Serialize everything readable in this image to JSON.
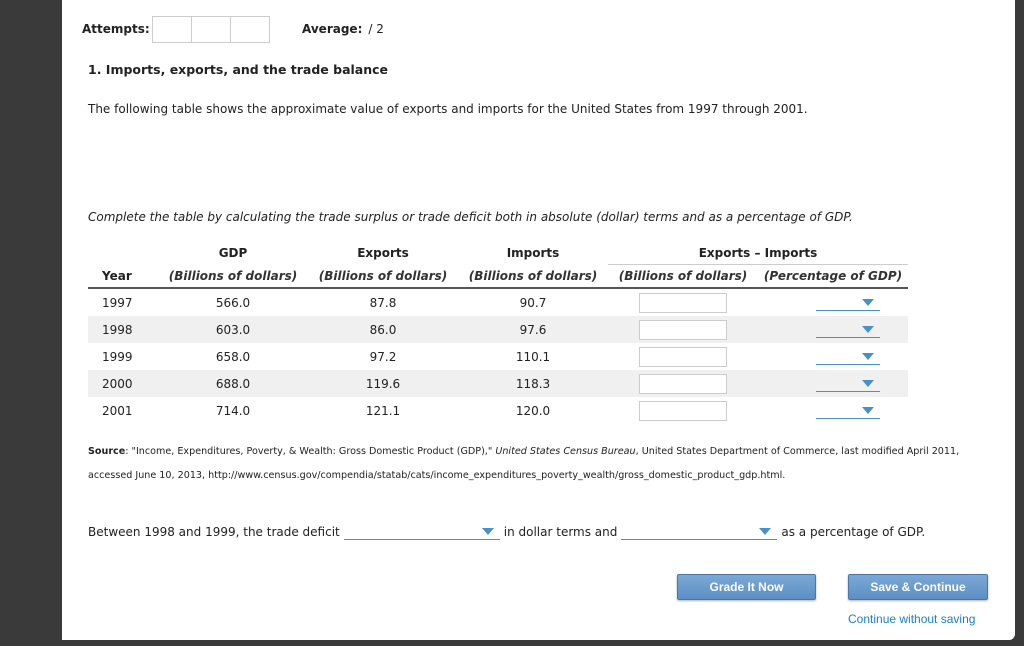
{
  "header": {
    "attempts_label": "Attempts:",
    "average_label": "Average:",
    "average_value": "/ 2"
  },
  "question": {
    "title": "1. Imports, exports, and the trade balance",
    "intro": "The following table shows the approximate value of exports and imports for the United States from 1997 through 2001.",
    "instruction": "Complete the table by calculating the trade surplus or trade deficit both in absolute (dollar) terms and as a percentage of GDP."
  },
  "table": {
    "group_headers": [
      "GDP",
      "Exports",
      "Imports",
      "Exports – Imports"
    ],
    "year_header": "Year",
    "sub_headers": [
      "(Billions of dollars)",
      "(Billions of dollars)",
      "(Billions of dollars)",
      "(Billions of dollars)",
      "(Percentage of GDP)"
    ],
    "rows": [
      {
        "year": "1997",
        "gdp": "566.0",
        "exports": "87.8",
        "imports": "90.7"
      },
      {
        "year": "1998",
        "gdp": "603.0",
        "exports": "86.0",
        "imports": "97.6"
      },
      {
        "year": "1999",
        "gdp": "658.0",
        "exports": "97.2",
        "imports": "110.1"
      },
      {
        "year": "2000",
        "gdp": "688.0",
        "exports": "119.6",
        "imports": "118.3"
      },
      {
        "year": "2001",
        "gdp": "714.0",
        "exports": "121.1",
        "imports": "120.0"
      }
    ]
  },
  "source": {
    "label": "Source",
    "text1": ": \"Income, Expenditures, Poverty, & Wealth: Gross Domestic Product (GDP),\" ",
    "italic": "United States Census Bureau",
    "text2": ", United States Department of Commerce, last modified April 2011, accessed June 10, 2013, http://www.census.gov/compendia/statab/cats/income_expenditures_poverty_wealth/gross_domestic_product_gdp.html."
  },
  "sentence": {
    "part1": "Between 1998 and 1999, the trade deficit",
    "part2": "in dollar terms and",
    "part3": "as a percentage of GDP."
  },
  "buttons": {
    "grade": "Grade It Now",
    "save": "Save & Continue",
    "continue_link": "Continue without saving"
  },
  "colors": {
    "accent": "#4a90c8",
    "button": "#6a9ace",
    "link": "#1a7fc8"
  }
}
